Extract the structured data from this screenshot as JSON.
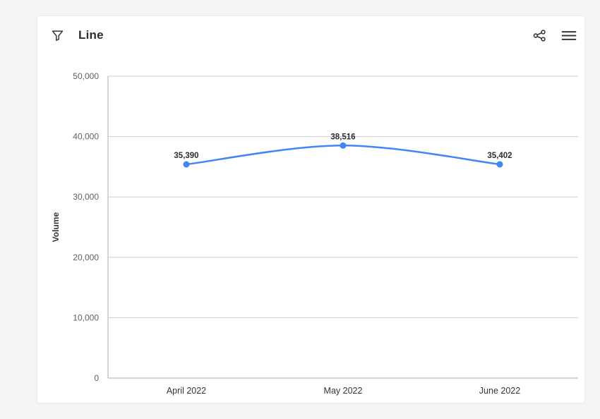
{
  "header": {
    "title": "Line",
    "icons": {
      "filter": "filter-icon",
      "share": "share-icon",
      "menu": "menu-icon"
    }
  },
  "chart_data": {
    "type": "line",
    "categories": [
      "April 2022",
      "May 2022",
      "June 2022"
    ],
    "series": [
      {
        "name": "Volume",
        "values": [
          35390,
          38516,
          35402
        ]
      }
    ],
    "data_labels": [
      "35,390",
      "38,516",
      "35,402"
    ],
    "title": "Line",
    "xlabel": "",
    "ylabel": "Volume",
    "ylim": [
      0,
      50000
    ],
    "ytick_step": 10000,
    "yticks": [
      "0",
      "10,000",
      "20,000",
      "30,000",
      "40,000",
      "50,000"
    ],
    "grid": true,
    "legend": "none"
  },
  "colors": {
    "line": "#4285F4",
    "grid": "#CDCDDA",
    "axis": "#ABABBE",
    "text_dark": "#32363A",
    "text_muted": "#5C5F62",
    "label_bold": "#2B2E31",
    "card": "#FFFFFF",
    "background": "#F5F5F6"
  }
}
